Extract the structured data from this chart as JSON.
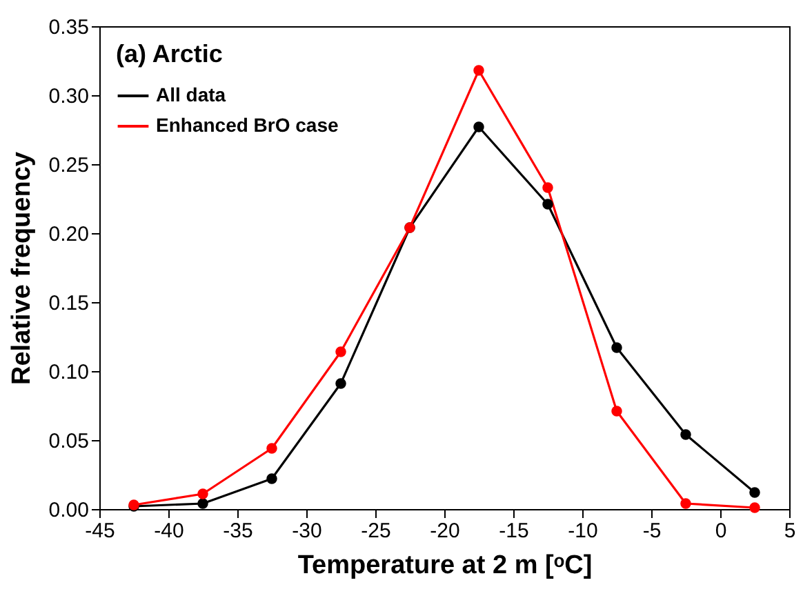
{
  "chart_data": {
    "type": "line",
    "title": "(a) Arctic",
    "xlabel": "Temperature at 2 m [ᵒC]",
    "ylabel": "Relative frequency",
    "x": [
      -42.5,
      -37.5,
      -32.5,
      -27.5,
      -22.5,
      -17.5,
      -12.5,
      -7.5,
      -2.5,
      2.5
    ],
    "series": [
      {
        "name": "All data",
        "color": "#000000",
        "values": [
          0.002,
          0.004,
          0.022,
          0.091,
          0.204,
          0.277,
          0.221,
          0.117,
          0.054,
          0.012
        ]
      },
      {
        "name": "Enhanced BrO case",
        "color": "#ff0000",
        "values": [
          0.003,
          0.011,
          0.044,
          0.114,
          0.204,
          0.318,
          0.233,
          0.071,
          0.004,
          0.001
        ]
      }
    ],
    "xlim": [
      -45,
      5
    ],
    "xticks": [
      -45,
      -40,
      -35,
      -30,
      -25,
      -20,
      -15,
      -10,
      -5,
      0,
      5
    ],
    "ylim": [
      0,
      0.35
    ],
    "yticks": [
      {
        "value": 0,
        "label": "0.00"
      },
      {
        "value": 0.05,
        "label": "0.05"
      },
      {
        "value": 0.1,
        "label": "0.10"
      },
      {
        "value": 0.15,
        "label": "0.15"
      },
      {
        "value": 0.2,
        "label": "0.20"
      },
      {
        "value": 0.25,
        "label": "0.25"
      },
      {
        "value": 0.3,
        "label": "0.30"
      },
      {
        "value": 0.35,
        "label": "0.35"
      }
    ],
    "grid": false,
    "legend": "top left",
    "marker": "circle",
    "line_style": "solid"
  }
}
